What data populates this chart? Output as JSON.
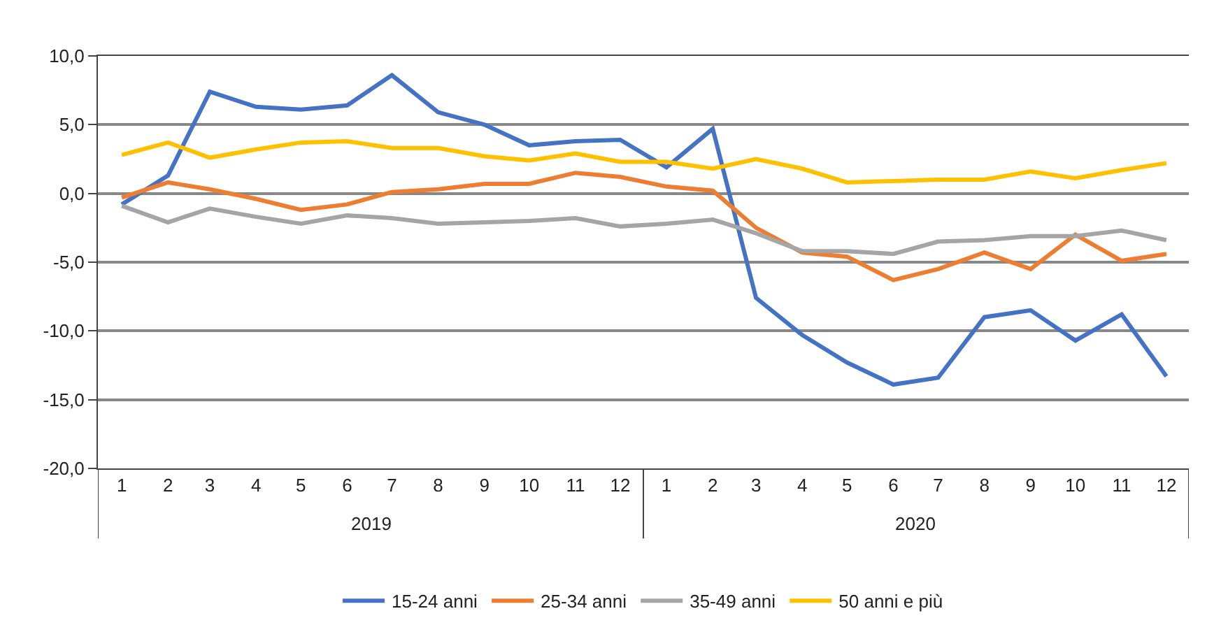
{
  "chart_data": {
    "type": "line",
    "x": [
      "2019-01",
      "2019-02",
      "2019-03",
      "2019-04",
      "2019-05",
      "2019-06",
      "2019-07",
      "2019-08",
      "2019-09",
      "2019-10",
      "2019-11",
      "2019-12",
      "2020-01",
      "2020-02",
      "2020-03",
      "2020-04",
      "2020-05",
      "2020-06",
      "2020-07",
      "2020-08",
      "2020-09",
      "2020-10",
      "2020-11",
      "2020-12"
    ],
    "xlim": [
      "2018-12-16",
      "2020-12-16"
    ],
    "xticks": [
      {
        "value": "2019-01",
        "label": "1"
      },
      {
        "value": "2019-02",
        "label": "2"
      },
      {
        "value": "2019-03",
        "label": "3"
      },
      {
        "value": "2019-04",
        "label": "4"
      },
      {
        "value": "2019-05",
        "label": "5"
      },
      {
        "value": "2019-06",
        "label": "6"
      },
      {
        "value": "2019-07",
        "label": "7"
      },
      {
        "value": "2019-08",
        "label": "8"
      },
      {
        "value": "2019-09",
        "label": "9"
      },
      {
        "value": "2019-10",
        "label": "10"
      },
      {
        "value": "2019-11",
        "label": "11"
      },
      {
        "value": "2019-12",
        "label": "12"
      },
      {
        "value": "2020-01",
        "label": "1"
      },
      {
        "value": "2020-02",
        "label": "2"
      },
      {
        "value": "2020-03",
        "label": "3"
      },
      {
        "value": "2020-04",
        "label": "4"
      },
      {
        "value": "2020-05",
        "label": "5"
      },
      {
        "value": "2020-06",
        "label": "6"
      },
      {
        "value": "2020-07",
        "label": "7"
      },
      {
        "value": "2020-08",
        "label": "8"
      },
      {
        "value": "2020-09",
        "label": "9"
      },
      {
        "value": "2020-10",
        "label": "10"
      },
      {
        "value": "2020-11",
        "label": "11"
      },
      {
        "value": "2020-12",
        "label": "12"
      }
    ],
    "annotations": [
      "2019",
      "2020"
    ],
    "ylim": [
      -20,
      10
    ],
    "yticks": [
      {
        "value": -20,
        "label": "-20,0"
      },
      {
        "value": -15,
        "label": "-15,0"
      },
      {
        "value": -10,
        "label": "-10,0"
      },
      {
        "value": -5,
        "label": "-5,0"
      },
      {
        "value": 0,
        "label": "0,0"
      },
      {
        "value": 5,
        "label": "5,0"
      },
      {
        "value": 10,
        "label": "10,0"
      }
    ],
    "grid": "y",
    "legend": "bottom",
    "marker": "none",
    "line_style": "solid",
    "series": [
      {
        "name": "15-24 anni",
        "color": "#4472c4",
        "values": [
          -0.8,
          1.3,
          7.4,
          6.3,
          6.1,
          6.4,
          8.6,
          5.9,
          5.0,
          3.5,
          3.8,
          3.9,
          1.9,
          4.7,
          -7.6,
          -10.3,
          -12.3,
          -13.9,
          -13.4,
          -9.0,
          -8.5,
          -10.7,
          -8.8,
          -13.3
        ]
      },
      {
        "name": "25-34 anni",
        "color": "#ed7d31",
        "values": [
          -0.3,
          0.8,
          0.3,
          -0.4,
          -1.2,
          -0.8,
          0.1,
          0.3,
          0.7,
          0.7,
          1.5,
          1.2,
          0.5,
          0.2,
          -2.5,
          -4.3,
          -4.6,
          -6.3,
          -5.5,
          -4.3,
          -5.5,
          -3.0,
          -4.9,
          -4.4
        ]
      },
      {
        "name": "35-49 anni",
        "color": "#a5a5a5",
        "values": [
          -0.9,
          -2.1,
          -1.1,
          -1.7,
          -2.2,
          -1.6,
          -1.8,
          -2.2,
          -2.1,
          -2.0,
          -1.8,
          -2.4,
          -2.2,
          -1.9,
          -2.9,
          -4.2,
          -4.2,
          -4.4,
          -3.5,
          -3.4,
          -3.1,
          -3.1,
          -2.7,
          -3.4
        ]
      },
      {
        "name": "50 anni e più",
        "color": "#ffc000",
        "values": [
          2.8,
          3.7,
          2.6,
          3.2,
          3.7,
          3.8,
          3.3,
          3.3,
          2.7,
          2.4,
          2.9,
          2.3,
          2.3,
          1.8,
          2.5,
          1.8,
          0.8,
          0.9,
          1.0,
          1.0,
          1.6,
          1.1,
          1.7,
          2.2
        ]
      }
    ]
  }
}
